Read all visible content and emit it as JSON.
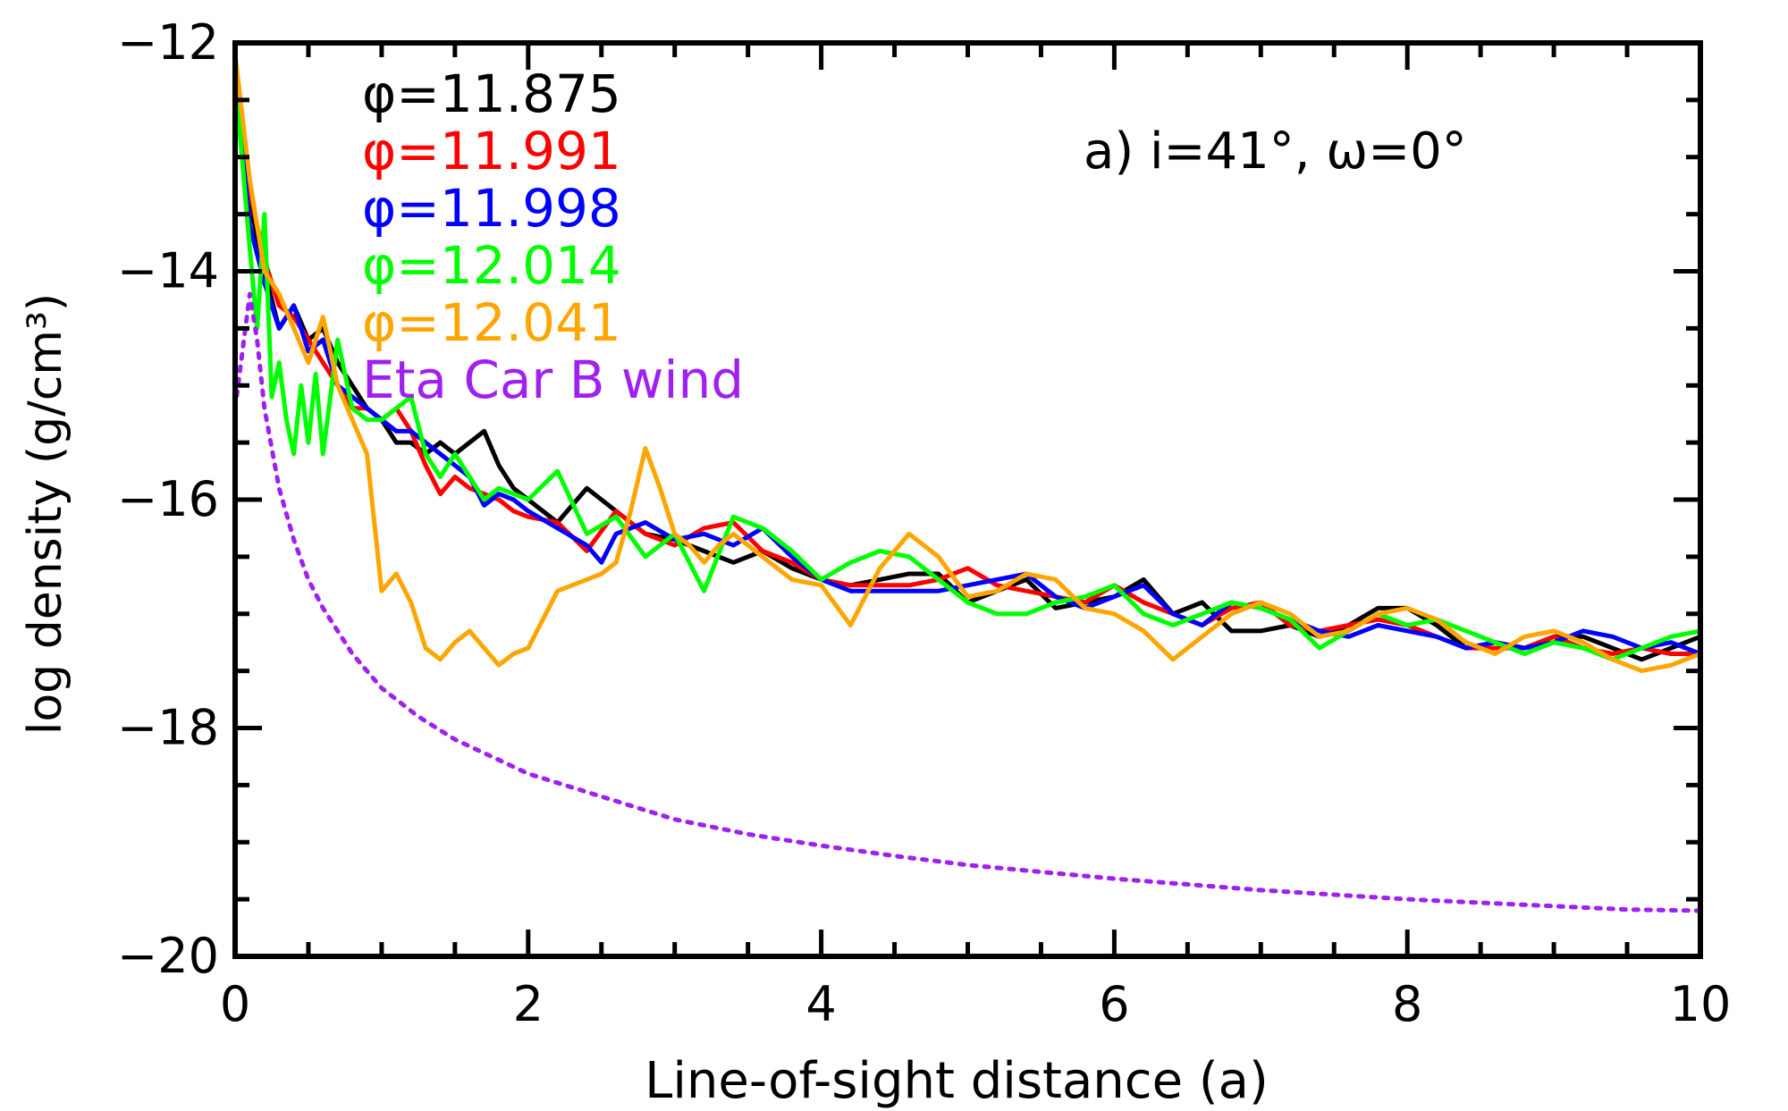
{
  "chart_data": {
    "type": "line",
    "title": "",
    "annotation": "a) i=41°, ω=0°",
    "xlabel": "Line-of-sight distance (a)",
    "ylabel": "log density (g/cm³)",
    "xlim": [
      0,
      10
    ],
    "ylim": [
      -20,
      -12
    ],
    "x_ticks": [
      0,
      2,
      4,
      6,
      8,
      10
    ],
    "x_tick_labels": [
      "0",
      "2",
      "4",
      "6",
      "8",
      "10"
    ],
    "y_ticks": [
      -20,
      -18,
      -16,
      -14,
      -12
    ],
    "y_tick_labels": [
      "−20",
      "−18",
      "−16",
      "−14",
      "−12"
    ],
    "legend_position": "top-left",
    "series": [
      {
        "name": "φ=11.875",
        "color": "#000000",
        "style": "solid",
        "x": [
          0,
          0.1,
          0.2,
          0.3,
          0.4,
          0.5,
          0.6,
          0.7,
          0.8,
          0.9,
          1.0,
          1.1,
          1.2,
          1.3,
          1.4,
          1.5,
          1.6,
          1.7,
          1.8,
          1.9,
          2.0,
          2.2,
          2.4,
          2.6,
          2.8,
          3.0,
          3.2,
          3.4,
          3.6,
          3.8,
          4.0,
          4.2,
          4.4,
          4.6,
          4.8,
          5.0,
          5.2,
          5.4,
          5.6,
          5.8,
          6.0,
          6.2,
          6.4,
          6.6,
          6.8,
          7.0,
          7.2,
          7.4,
          7.6,
          7.8,
          8.0,
          8.2,
          8.4,
          8.6,
          8.8,
          9.0,
          9.2,
          9.4,
          9.6,
          9.8,
          10.0
        ],
        "y": [
          -12.2,
          -13.4,
          -14.0,
          -14.5,
          -14.3,
          -14.6,
          -14.5,
          -14.8,
          -15.0,
          -15.2,
          -15.3,
          -15.5,
          -15.5,
          -15.6,
          -15.5,
          -15.6,
          -15.5,
          -15.4,
          -15.7,
          -15.9,
          -16.0,
          -16.2,
          -15.9,
          -16.1,
          -16.3,
          -16.35,
          -16.45,
          -16.55,
          -16.45,
          -16.6,
          -16.7,
          -16.75,
          -16.7,
          -16.65,
          -16.65,
          -16.9,
          -16.8,
          -16.7,
          -16.95,
          -16.9,
          -16.85,
          -16.7,
          -17.0,
          -16.9,
          -17.15,
          -17.15,
          -17.1,
          -17.2,
          -17.1,
          -16.95,
          -16.95,
          -17.1,
          -17.3,
          -17.25,
          -17.3,
          -17.2,
          -17.2,
          -17.3,
          -17.4,
          -17.3,
          -17.2
        ]
      },
      {
        "name": "φ=11.991",
        "color": "#ff0000",
        "style": "solid",
        "x": [
          0,
          0.1,
          0.2,
          0.3,
          0.4,
          0.5,
          0.6,
          0.7,
          0.8,
          0.9,
          1.0,
          1.1,
          1.2,
          1.3,
          1.4,
          1.5,
          1.6,
          1.7,
          1.8,
          1.9,
          2.0,
          2.2,
          2.4,
          2.6,
          2.8,
          3.0,
          3.2,
          3.4,
          3.6,
          3.8,
          4.0,
          4.2,
          4.4,
          4.6,
          4.8,
          5.0,
          5.2,
          5.4,
          5.6,
          5.8,
          6.0,
          6.2,
          6.4,
          6.6,
          6.8,
          7.0,
          7.2,
          7.4,
          7.6,
          7.8,
          8.0,
          8.2,
          8.4,
          8.6,
          8.8,
          9.0,
          9.2,
          9.4,
          9.6,
          9.8,
          10.0
        ],
        "y": [
          -12.2,
          -13.3,
          -13.9,
          -14.3,
          -14.4,
          -14.6,
          -14.8,
          -15.0,
          -15.2,
          -15.2,
          -15.3,
          -15.2,
          -15.4,
          -15.7,
          -15.95,
          -15.8,
          -15.9,
          -15.95,
          -16.0,
          -16.1,
          -16.15,
          -16.2,
          -16.45,
          -16.1,
          -16.3,
          -16.4,
          -16.25,
          -16.2,
          -16.45,
          -16.55,
          -16.7,
          -16.75,
          -16.75,
          -16.75,
          -16.7,
          -16.6,
          -16.75,
          -16.8,
          -16.85,
          -16.9,
          -16.75,
          -16.9,
          -17.0,
          -17.1,
          -16.95,
          -16.9,
          -17.1,
          -17.15,
          -17.1,
          -17.05,
          -17.1,
          -17.2,
          -17.3,
          -17.3,
          -17.3,
          -17.2,
          -17.3,
          -17.35,
          -17.3,
          -17.35,
          -17.35
        ]
      },
      {
        "name": "φ=11.998",
        "color": "#0000ff",
        "style": "solid",
        "x": [
          0,
          0.1,
          0.2,
          0.3,
          0.4,
          0.5,
          0.6,
          0.7,
          0.8,
          0.9,
          1.0,
          1.1,
          1.2,
          1.3,
          1.4,
          1.5,
          1.6,
          1.7,
          1.8,
          1.9,
          2.0,
          2.2,
          2.4,
          2.5,
          2.6,
          2.8,
          3.0,
          3.2,
          3.4,
          3.6,
          3.8,
          4.0,
          4.2,
          4.4,
          4.6,
          4.8,
          5.0,
          5.2,
          5.4,
          5.6,
          5.8,
          6.0,
          6.2,
          6.4,
          6.6,
          6.8,
          7.0,
          7.2,
          7.4,
          7.6,
          7.8,
          8.0,
          8.2,
          8.4,
          8.6,
          8.8,
          9.0,
          9.2,
          9.4,
          9.6,
          9.8,
          10.0
        ],
        "y": [
          -12.3,
          -13.6,
          -14.1,
          -14.5,
          -14.3,
          -14.7,
          -14.6,
          -15.0,
          -15.1,
          -15.2,
          -15.3,
          -15.4,
          -15.4,
          -15.5,
          -15.6,
          -15.7,
          -15.8,
          -16.05,
          -15.95,
          -16.0,
          -16.1,
          -16.25,
          -16.4,
          -16.55,
          -16.3,
          -16.2,
          -16.35,
          -16.3,
          -16.4,
          -16.25,
          -16.5,
          -16.7,
          -16.8,
          -16.8,
          -16.8,
          -16.8,
          -16.75,
          -16.7,
          -16.65,
          -16.85,
          -16.95,
          -16.85,
          -16.75,
          -17.0,
          -17.1,
          -16.9,
          -16.95,
          -17.05,
          -17.15,
          -17.2,
          -17.1,
          -17.15,
          -17.2,
          -17.3,
          -17.25,
          -17.3,
          -17.25,
          -17.15,
          -17.2,
          -17.3,
          -17.25,
          -17.35
        ]
      },
      {
        "name": "φ=12.014",
        "color": "#00ff00",
        "style": "solid",
        "x": [
          0,
          0.1,
          0.15,
          0.2,
          0.25,
          0.3,
          0.35,
          0.4,
          0.45,
          0.5,
          0.55,
          0.6,
          0.7,
          0.8,
          0.9,
          1.0,
          1.1,
          1.2,
          1.3,
          1.4,
          1.5,
          1.6,
          1.7,
          1.8,
          1.9,
          2.0,
          2.2,
          2.4,
          2.6,
          2.8,
          3.0,
          3.2,
          3.4,
          3.6,
          3.8,
          4.0,
          4.2,
          4.4,
          4.6,
          4.8,
          5.0,
          5.2,
          5.4,
          5.6,
          5.8,
          6.0,
          6.2,
          6.4,
          6.6,
          6.8,
          7.0,
          7.2,
          7.4,
          7.6,
          7.8,
          8.0,
          8.2,
          8.4,
          8.6,
          8.8,
          9.0,
          9.2,
          9.4,
          9.6,
          9.8,
          10.0
        ],
        "y": [
          -12.3,
          -13.8,
          -14.5,
          -13.5,
          -15.1,
          -14.8,
          -15.3,
          -15.6,
          -15.0,
          -15.5,
          -14.9,
          -15.6,
          -14.6,
          -15.2,
          -15.3,
          -15.3,
          -15.2,
          -15.1,
          -15.6,
          -15.8,
          -15.6,
          -15.8,
          -16.0,
          -15.9,
          -15.95,
          -16.0,
          -15.75,
          -16.3,
          -16.15,
          -16.5,
          -16.3,
          -16.8,
          -16.15,
          -16.25,
          -16.45,
          -16.7,
          -16.55,
          -16.45,
          -16.5,
          -16.7,
          -16.9,
          -17.0,
          -17.0,
          -16.9,
          -16.85,
          -16.75,
          -17.0,
          -17.1,
          -17.0,
          -16.9,
          -16.95,
          -17.05,
          -17.3,
          -17.15,
          -17.0,
          -17.1,
          -17.05,
          -17.15,
          -17.25,
          -17.35,
          -17.25,
          -17.3,
          -17.4,
          -17.3,
          -17.2,
          -17.15
        ]
      },
      {
        "name": "φ=12.041",
        "color": "#ffa500",
        "style": "solid",
        "x": [
          0,
          0.1,
          0.2,
          0.3,
          0.4,
          0.5,
          0.6,
          0.7,
          0.8,
          0.9,
          1.0,
          1.1,
          1.2,
          1.3,
          1.4,
          1.5,
          1.6,
          1.7,
          1.8,
          1.9,
          2.0,
          2.1,
          2.2,
          2.3,
          2.4,
          2.5,
          2.6,
          2.7,
          2.8,
          2.9,
          3.0,
          3.1,
          3.2,
          3.3,
          3.4,
          3.6,
          3.8,
          4.0,
          4.2,
          4.4,
          4.6,
          4.8,
          5.0,
          5.2,
          5.4,
          5.6,
          5.8,
          6.0,
          6.2,
          6.4,
          6.6,
          6.8,
          7.0,
          7.2,
          7.4,
          7.6,
          7.8,
          8.0,
          8.2,
          8.4,
          8.6,
          8.8,
          9.0,
          9.2,
          9.4,
          9.6,
          9.8,
          10.0
        ],
        "y": [
          -12.1,
          -13.2,
          -14.0,
          -14.2,
          -14.5,
          -14.8,
          -14.4,
          -15.0,
          -15.3,
          -15.6,
          -16.8,
          -16.65,
          -16.9,
          -17.3,
          -17.4,
          -17.25,
          -17.15,
          -17.3,
          -17.45,
          -17.35,
          -17.3,
          -17.05,
          -16.8,
          -16.75,
          -16.7,
          -16.65,
          -16.55,
          -16.1,
          -15.55,
          -15.9,
          -16.3,
          -16.4,
          -16.55,
          -16.4,
          -16.3,
          -16.5,
          -16.7,
          -16.75,
          -17.1,
          -16.6,
          -16.3,
          -16.5,
          -16.85,
          -16.8,
          -16.65,
          -16.7,
          -16.95,
          -17.0,
          -17.15,
          -17.4,
          -17.2,
          -17.0,
          -16.9,
          -17.0,
          -17.2,
          -17.15,
          -17.0,
          -16.95,
          -17.05,
          -17.25,
          -17.35,
          -17.2,
          -17.15,
          -17.25,
          -17.4,
          -17.5,
          -17.45,
          -17.35
        ]
      },
      {
        "name": "Eta Car B wind",
        "color": "#a020f0",
        "style": "dotted",
        "x": [
          0,
          0.05,
          0.1,
          0.15,
          0.2,
          0.3,
          0.4,
          0.5,
          0.6,
          0.8,
          1.0,
          1.25,
          1.5,
          1.75,
          2.0,
          2.5,
          3.0,
          3.5,
          4.0,
          4.5,
          5.0,
          5.5,
          6.0,
          6.5,
          7.0,
          7.5,
          8.0,
          8.5,
          9.0,
          9.5,
          10.0
        ],
        "y": [
          -15.2,
          -14.7,
          -14.2,
          -14.6,
          -15.2,
          -15.9,
          -16.35,
          -16.7,
          -16.95,
          -17.35,
          -17.65,
          -17.9,
          -18.1,
          -18.25,
          -18.4,
          -18.6,
          -18.8,
          -18.93,
          -19.03,
          -19.12,
          -19.2,
          -19.26,
          -19.32,
          -19.37,
          -19.42,
          -19.46,
          -19.5,
          -19.53,
          -19.56,
          -19.59,
          -19.6
        ]
      }
    ]
  }
}
